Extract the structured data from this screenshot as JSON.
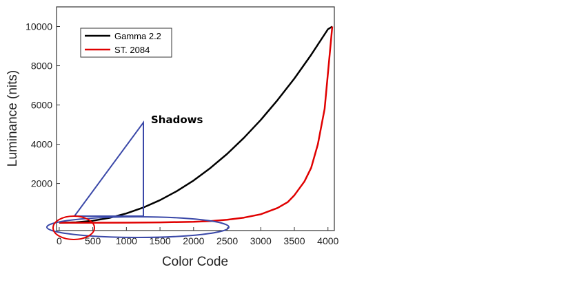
{
  "chart_data": {
    "type": "line",
    "title": "",
    "xlabel": "Color Code",
    "ylabel": "Luminance (nits)",
    "xlim": [
      -40,
      4095
    ],
    "ylim": [
      -400,
      11000
    ],
    "x_ticks": [
      0,
      500,
      1000,
      1500,
      2000,
      2500,
      3000,
      3500,
      4000
    ],
    "y_ticks": [
      2000,
      4000,
      6000,
      8000,
      10000
    ],
    "grid": false,
    "legend_position": "top-left",
    "series": [
      {
        "name": "Gamma 2.2",
        "color": "#000000",
        "x": [
          0,
          250,
          500,
          750,
          1000,
          1250,
          1500,
          1750,
          2000,
          2250,
          2500,
          2750,
          3000,
          3250,
          3500,
          3750,
          4000,
          4064
        ],
        "y": [
          0,
          22,
          103,
          250,
          475,
          770,
          1150,
          1610,
          2150,
          2790,
          3510,
          4330,
          5240,
          6250,
          7350,
          8560,
          9860,
          10000
        ]
      },
      {
        "name": "ST. 2084",
        "color": "#e00000",
        "x": [
          0,
          500,
          1000,
          1500,
          2000,
          2250,
          2500,
          2750,
          3000,
          3250,
          3400,
          3500,
          3650,
          3750,
          3850,
          3950,
          4064
        ],
        "y": [
          0,
          1,
          5,
          18,
          48,
          85,
          150,
          260,
          430,
          750,
          1050,
          1400,
          2100,
          2800,
          4000,
          5800,
          10000
        ]
      }
    ],
    "annotations": [
      {
        "text": "Shadows"
      }
    ]
  }
}
